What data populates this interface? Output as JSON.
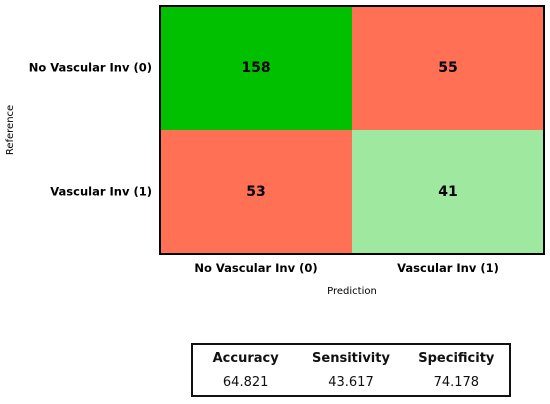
{
  "chart_data": {
    "type": "heatmap",
    "rows": [
      "No Vascular Inv (0)",
      "Vascular Inv (1)"
    ],
    "columns": [
      "No Vascular Inv (0)",
      "Vascular Inv (1)"
    ],
    "values": [
      [
        158,
        55
      ],
      [
        53,
        41
      ]
    ],
    "cell_colors": [
      [
        "#00c000",
        "#ff7055"
      ],
      [
        "#ff7055",
        "#9fe89f"
      ]
    ],
    "xlabel": "Prediction",
    "ylabel": "Reference"
  },
  "metrics": [
    {
      "name": "Accuracy",
      "value": "64.821"
    },
    {
      "name": "Sensitivity",
      "value": "43.617"
    },
    {
      "name": "Specificity",
      "value": "74.178"
    }
  ]
}
